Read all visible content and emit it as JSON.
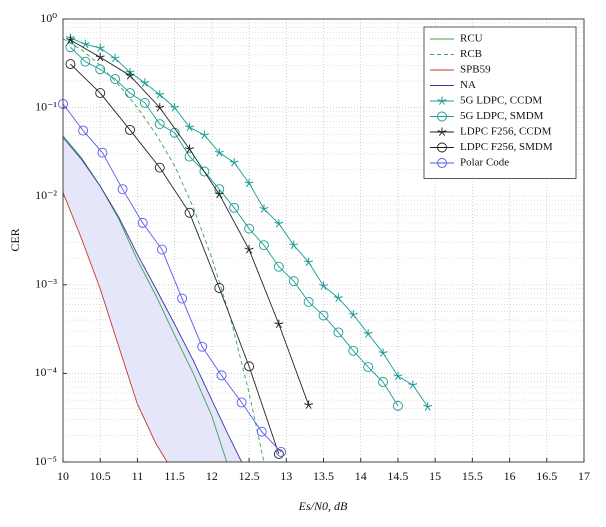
{
  "chart_data": {
    "type": "line",
    "log_y": true,
    "grid": true,
    "minor_grid": true,
    "legend": "upper right",
    "xlabel": "Es/N0, dB",
    "ylabel": "CER",
    "xlim": [
      10,
      17
    ],
    "xticks": [
      10,
      10.5,
      11,
      11.5,
      12,
      12.5,
      13,
      13.5,
      14,
      14.5,
      15,
      15.5,
      16,
      16.5,
      17
    ],
    "ylim": [
      1e-05,
      1
    ],
    "yticks": [
      {
        "value": 1,
        "label": "10⁰"
      },
      {
        "value": 0.1,
        "label": "10⁻¹"
      },
      {
        "value": 0.01,
        "label": "10⁻²"
      },
      {
        "value": 0.001,
        "label": "10⁻³"
      },
      {
        "value": 0.0001,
        "label": "10⁻⁴"
      },
      {
        "value": 1e-05,
        "label": "10⁻⁵"
      }
    ],
    "shade": {
      "between": [
        "SPB59",
        "NA"
      ],
      "color": "#e6e6fa"
    },
    "series": [
      {
        "name": "RCU",
        "color": "#3aa655",
        "marker": "none",
        "dash": false,
        "x": [
          10,
          10.25,
          10.5,
          10.75,
          11,
          11.25,
          11.5,
          11.75,
          12,
          12.2
        ],
        "values": [
          0.048,
          0.027,
          0.013,
          0.0055,
          0.0019,
          0.00075,
          0.00027,
          0.0001,
          3.3e-05,
          1e-05
        ]
      },
      {
        "name": "RCB",
        "color": "#3aa655",
        "marker": "none",
        "dash": true,
        "x": [
          10,
          10.25,
          10.5,
          10.75,
          11,
          11.25,
          11.5,
          11.75,
          12,
          12.25,
          12.5,
          12.7
        ],
        "values": [
          0.6,
          0.45,
          0.3,
          0.18,
          0.1,
          0.05,
          0.022,
          0.0075,
          0.002,
          0.00042,
          6e-05,
          1e-05
        ]
      },
      {
        "name": "SPB59",
        "color": "#c0392b",
        "marker": "none",
        "dash": false,
        "x": [
          10,
          10.25,
          10.5,
          10.75,
          11,
          11.25,
          11.4
        ],
        "values": [
          0.011,
          0.0033,
          0.0009,
          0.0002,
          4.5e-05,
          1.6e-05,
          1e-05
        ]
      },
      {
        "name": "NA",
        "color": "#3a3aa0",
        "marker": "none",
        "dash": false,
        "x": [
          10,
          10.25,
          10.5,
          10.75,
          11,
          11.25,
          11.5,
          11.75,
          12,
          12.2,
          12.4
        ],
        "values": [
          0.046,
          0.026,
          0.013,
          0.0058,
          0.0022,
          0.0009,
          0.00036,
          0.00014,
          5e-05,
          2.2e-05,
          1e-05
        ]
      },
      {
        "name": "5G LDPC, CCDM",
        "color": "#1a9c94",
        "marker": "star",
        "dash": false,
        "x": [
          10.1,
          10.3,
          10.5,
          10.7,
          10.9,
          11.1,
          11.3,
          11.5,
          11.7,
          11.9,
          12.1,
          12.3,
          12.5,
          12.7,
          12.9,
          13.1,
          13.3,
          13.5,
          13.7,
          13.9,
          14.1,
          14.3,
          14.5,
          14.7,
          14.9
        ],
        "values": [
          0.61,
          0.52,
          0.47,
          0.36,
          0.25,
          0.19,
          0.14,
          0.1,
          0.06,
          0.049,
          0.031,
          0.024,
          0.014,
          0.0072,
          0.0049,
          0.0028,
          0.0018,
          0.00097,
          0.00071,
          0.00046,
          0.00028,
          0.00017,
          9.3e-05,
          7.4e-05,
          4.2e-05
        ]
      },
      {
        "name": "5G LDPC, SMDM",
        "color": "#1a9c94",
        "marker": "circle",
        "dash": false,
        "x": [
          10.1,
          10.3,
          10.5,
          10.7,
          10.9,
          11.1,
          11.3,
          11.5,
          11.7,
          11.9,
          12.1,
          12.3,
          12.5,
          12.7,
          12.9,
          13.1,
          13.3,
          13.5,
          13.7,
          13.9,
          14.1,
          14.3,
          14.5
        ],
        "values": [
          0.48,
          0.33,
          0.27,
          0.21,
          0.146,
          0.113,
          0.065,
          0.052,
          0.028,
          0.019,
          0.012,
          0.0074,
          0.0043,
          0.0028,
          0.0016,
          0.0011,
          0.00064,
          0.00045,
          0.00029,
          0.00018,
          0.000118,
          8e-05,
          4.3e-05
        ]
      },
      {
        "name": "LDPC F256, CCDM",
        "color": "#222222",
        "marker": "star",
        "dash": false,
        "x": [
          10.1,
          10.5,
          10.9,
          11.3,
          11.7,
          12.1,
          12.5,
          12.9,
          13.3
        ],
        "values": [
          0.58,
          0.37,
          0.23,
          0.1,
          0.034,
          0.0105,
          0.0025,
          0.00036,
          4.4e-05
        ]
      },
      {
        "name": "LDPC F256, SMDM",
        "color": "#222222",
        "marker": "circle",
        "dash": false,
        "x": [
          10.1,
          10.5,
          10.9,
          11.3,
          11.7,
          12.1,
          12.5,
          12.9
        ],
        "values": [
          0.31,
          0.146,
          0.056,
          0.021,
          0.0065,
          0.00092,
          0.00012,
          1.23e-05
        ]
      },
      {
        "name": "Polar Code",
        "color": "#5a5aee",
        "marker": "circle",
        "dash": false,
        "x": [
          10,
          10.27,
          10.53,
          10.8,
          11.07,
          11.33,
          11.6,
          11.87,
          12.13,
          12.4,
          12.67,
          12.93
        ],
        "values": [
          0.11,
          0.055,
          0.031,
          0.012,
          0.005,
          0.0025,
          0.0007,
          0.0002,
          9.5e-05,
          4.7e-05,
          2.2e-05,
          1.3e-05
        ]
      }
    ]
  }
}
